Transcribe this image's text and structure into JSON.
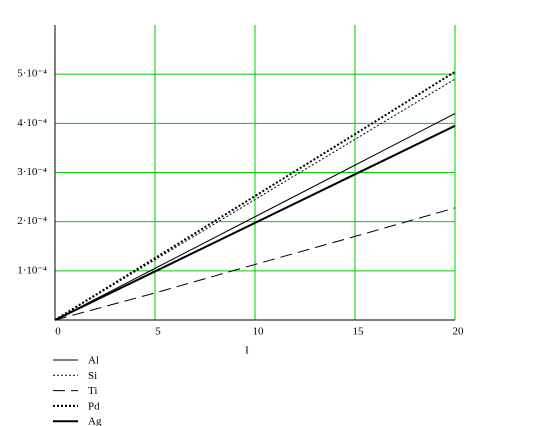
{
  "chart_data": {
    "type": "line",
    "x_label": "I",
    "x": [
      0,
      5,
      10,
      15,
      20
    ],
    "series": [
      {
        "name": "Al",
        "color": "#000000",
        "style": "solid",
        "width": 1,
        "values": [
          0,
          0.000105,
          0.00021,
          0.000315,
          0.00042
        ]
      },
      {
        "name": "Si",
        "color": "#000000",
        "style": "dotted",
        "width": 1,
        "values": [
          0,
          0.0001225,
          0.000245,
          0.0003675,
          0.00049
        ]
      },
      {
        "name": "Ti",
        "color": "#000000",
        "style": "dashed",
        "width": 1,
        "values": [
          0,
          5.5e-05,
          0.000113,
          0.00017,
          0.000228
        ]
      },
      {
        "name": "Pd",
        "color": "#000000",
        "style": "dotted",
        "width": 2,
        "values": [
          0,
          0.000126,
          0.000252,
          0.000378,
          0.000505
        ]
      },
      {
        "name": "Ag",
        "color": "#000000",
        "style": "solid",
        "width": 2,
        "values": [
          0,
          9.88e-05,
          0.0001975,
          0.0002963,
          0.000395
        ]
      }
    ],
    "xlim": [
      0,
      20
    ],
    "xticks": [
      0,
      5,
      10,
      15,
      20
    ],
    "ylim": [
      0,
      0.0006
    ],
    "yticks": [
      {
        "value": 0.0001,
        "label": "1·10⁻⁴"
      },
      {
        "value": 0.0002,
        "label": "2·10⁻⁴"
      },
      {
        "value": 0.0003,
        "label": "3·10⁻⁴"
      },
      {
        "value": 0.0004,
        "label": "4·10⁻⁴"
      },
      {
        "value": 0.0005,
        "label": "5·10⁻⁴"
      }
    ],
    "grid": true,
    "grid_color": "#00cc00",
    "legend": "bottom-left"
  }
}
